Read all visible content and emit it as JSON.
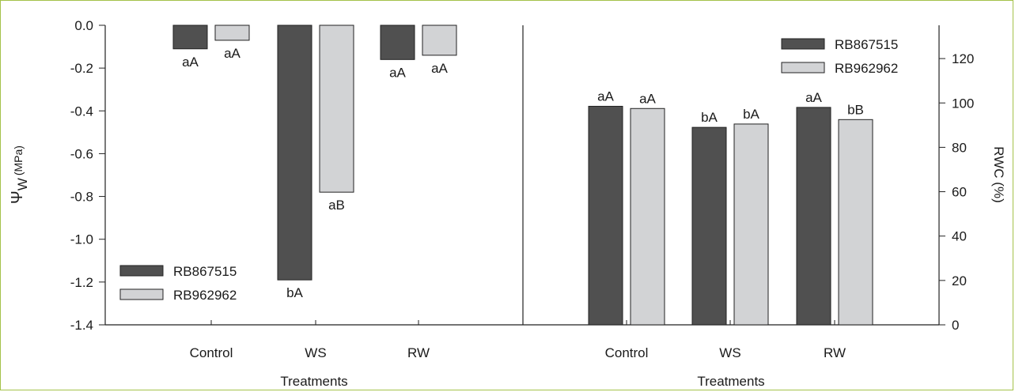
{
  "chart_data": [
    {
      "type": "bar",
      "categories": [
        "Control",
        "WS",
        "RW"
      ],
      "xlabel": "Treatments",
      "ylabel_main": "Ψ",
      "ylabel_sub": "W",
      "ylabel_unit": "(MPa)",
      "ylim": [
        -1.4,
        0.0
      ],
      "yticks": [
        "0.0",
        "-0.2",
        "-0.4",
        "-0.6",
        "-0.8",
        "-1.0",
        "-1.2",
        "-1.4"
      ],
      "legend_position": "bottom-left",
      "series": [
        {
          "name": "RB867515",
          "color": "#505050",
          "values": [
            -0.11,
            -1.19,
            -0.16
          ],
          "labels": [
            "aA",
            "bA",
            "aA"
          ]
        },
        {
          "name": "RB962962",
          "color": "#d2d3d5",
          "values": [
            -0.07,
            -0.78,
            -0.14
          ],
          "labels": [
            "aA",
            "aB",
            "aA"
          ]
        }
      ]
    },
    {
      "type": "bar",
      "categories": [
        "Control",
        "WS",
        "RW"
      ],
      "xlabel": "Treatments",
      "ylabel": "RWC (%)",
      "ylim": [
        0,
        135
      ],
      "yticks": [
        "0",
        "20",
        "40",
        "60",
        "80",
        "100",
        "120"
      ],
      "legend_position": "top-right",
      "series": [
        {
          "name": "RB867515",
          "color": "#505050",
          "values": [
            98.5,
            89.0,
            98.0
          ],
          "labels": [
            "aA",
            "bA",
            "aA"
          ]
        },
        {
          "name": "RB962962",
          "color": "#d2d3d5",
          "values": [
            97.5,
            90.5,
            92.5
          ],
          "labels": [
            "aA",
            "bA",
            "bB"
          ]
        }
      ]
    }
  ]
}
